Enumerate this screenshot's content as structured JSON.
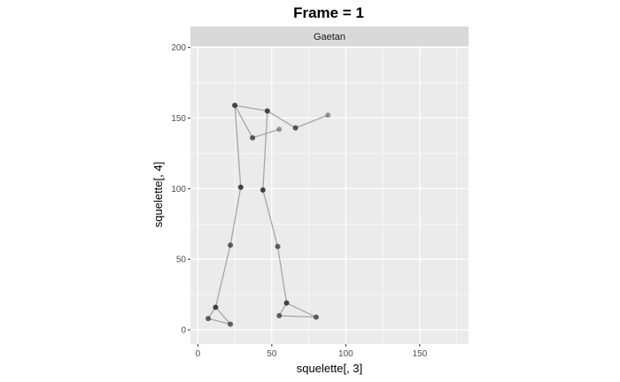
{
  "chart_data": {
    "type": "scatter",
    "title": "Frame = 1",
    "facet_label": "Gaetan",
    "xlabel": "squelette[, 3]",
    "ylabel": "squelette[, 4]",
    "xlim": [
      -5,
      183
    ],
    "ylim": [
      -10,
      201
    ],
    "x_ticks": [
      0,
      50,
      100,
      150
    ],
    "y_ticks": [
      0,
      50,
      100,
      150,
      200
    ],
    "grid": true,
    "colors": {
      "panel_bg": "#ebebeb",
      "strip_bg": "#d9d9d9",
      "grid": "#ffffff",
      "point": "#333333",
      "line": "#a6a6a6"
    },
    "points": [
      {
        "id": "head_left",
        "x": 25,
        "y": 159,
        "alpha": 0.9
      },
      {
        "id": "head_right",
        "x": 47,
        "y": 155,
        "alpha": 0.9
      },
      {
        "id": "left_elbow",
        "x": 37,
        "y": 136,
        "alpha": 0.8
      },
      {
        "id": "left_hand",
        "x": 55,
        "y": 142,
        "alpha": 0.45
      },
      {
        "id": "right_elbow",
        "x": 66,
        "y": 143,
        "alpha": 0.8
      },
      {
        "id": "right_hand",
        "x": 88,
        "y": 152,
        "alpha": 0.45
      },
      {
        "id": "left_hip",
        "x": 29,
        "y": 101,
        "alpha": 0.9
      },
      {
        "id": "right_hip",
        "x": 44,
        "y": 99,
        "alpha": 0.9
      },
      {
        "id": "left_knee",
        "x": 22,
        "y": 60,
        "alpha": 0.75
      },
      {
        "id": "right_knee",
        "x": 54,
        "y": 59,
        "alpha": 0.75
      },
      {
        "id": "left_ankle",
        "x": 12,
        "y": 16,
        "alpha": 0.9
      },
      {
        "id": "right_ankle",
        "x": 60,
        "y": 19,
        "alpha": 0.9
      },
      {
        "id": "left_heel",
        "x": 7,
        "y": 8,
        "alpha": 0.75
      },
      {
        "id": "left_toe",
        "x": 22,
        "y": 4,
        "alpha": 0.75
      },
      {
        "id": "right_heel",
        "x": 55,
        "y": 10,
        "alpha": 0.75
      },
      {
        "id": "right_toe",
        "x": 80,
        "y": 9,
        "alpha": 0.75
      }
    ],
    "segments": [
      [
        "head_left",
        "head_right"
      ],
      [
        "head_left",
        "left_elbow"
      ],
      [
        "left_elbow",
        "left_hand"
      ],
      [
        "head_right",
        "right_elbow"
      ],
      [
        "right_elbow",
        "right_hand"
      ],
      [
        "head_left",
        "left_hip"
      ],
      [
        "head_right",
        "right_hip"
      ],
      [
        "left_hip",
        "left_knee"
      ],
      [
        "right_hip",
        "right_knee"
      ],
      [
        "left_knee",
        "left_ankle"
      ],
      [
        "right_knee",
        "right_ankle"
      ],
      [
        "left_ankle",
        "left_heel"
      ],
      [
        "left_heel",
        "left_toe"
      ],
      [
        "left_toe",
        "left_ankle"
      ],
      [
        "right_ankle",
        "right_heel"
      ],
      [
        "right_heel",
        "right_toe"
      ],
      [
        "right_toe",
        "right_ankle"
      ]
    ]
  }
}
